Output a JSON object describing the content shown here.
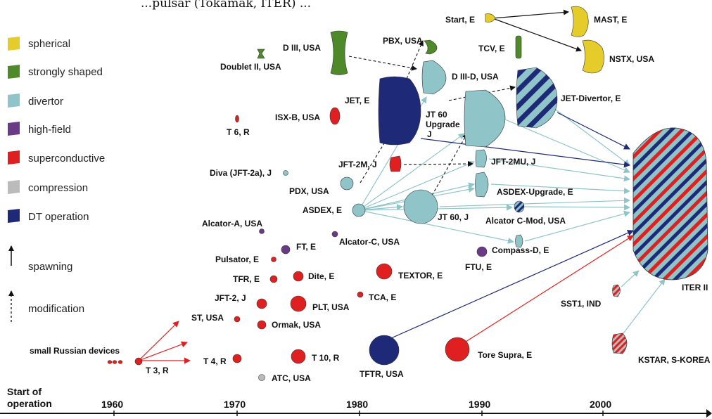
{
  "header_fragment": "...pulsar (Tokamak, ITER) ...",
  "legend": [
    {
      "key": "spherical",
      "label": "spherical",
      "color": "#e6cc2a"
    },
    {
      "key": "strongly",
      "label": "strongly shaped",
      "color": "#4f8a2a"
    },
    {
      "key": "divertor",
      "label": "divertor",
      "color": "#8fc5c8"
    },
    {
      "key": "highfield",
      "label": "high-field",
      "color": "#6a3a88"
    },
    {
      "key": "super",
      "label": "superconductive",
      "color": "#e02020"
    },
    {
      "key": "compression",
      "label": "compression",
      "color": "#bbbbbb"
    },
    {
      "key": "dt",
      "label": "DT operation",
      "color": "#1e2a78"
    }
  ],
  "arrow_legend": {
    "spawning": "spawning",
    "modification": "modification"
  },
  "axis": {
    "title_line1": "Start of",
    "title_line2": "operation",
    "years": [
      "1960",
      "1970",
      "1980",
      "1990",
      "2000"
    ]
  },
  "devices": {
    "small_russian": "small Russian devices",
    "t3": "T 3, R",
    "t4": "T 4, R",
    "t10": "T 10, R",
    "atc": "ATC, USA",
    "st": "ST, USA",
    "ormak": "Ormak, USA",
    "jft2": "JFT-2, J",
    "plt": "PLT, USA",
    "tca": "TCA, E",
    "tfr": "TFR, E",
    "dite": "Dite, E",
    "textor": "TEXTOR, E",
    "pulsator": "Pulsator, E",
    "ft": "FT, E",
    "alcator_a": "Alcator-A, USA",
    "alcator_c": "Alcator-C, USA",
    "pdx": "PDX, USA",
    "asdex": "ASDEX, E",
    "diva": "Diva (JFT-2a), J",
    "t6": "T 6, R",
    "isxb": "ISX-B, USA",
    "doublet": "Doublet II, USA",
    "d3": "D III, USA",
    "jet": "JET, E",
    "jft2m": "JFT-2M, J",
    "pbx": "PBX, USA",
    "d3d": "D III-D, USA",
    "jt60u_1": "JT 60",
    "jt60u_2": "Upgrade",
    "jt60u_3": "J",
    "jt60": "JT 60, J",
    "jft2mu": "JFT-2MU, J",
    "asdexu": "ASDEX-Upgrade, E",
    "alcatorcmod": "Alcator C-Mod, USA",
    "compassd": "Compass-D, E",
    "ftu": "FTU, E",
    "tftr": "TFTR, USA",
    "toresupra": "Tore Supra, E",
    "start": "Start, E",
    "tcv": "TCV, E",
    "mast": "MAST, E",
    "nstx": "NSTX, USA",
    "jetdiv": "JET-Divertor, E",
    "iter": "ITER II",
    "sst1": "SST1, IND",
    "kstar": "KSTAR, S-KOREA"
  }
}
